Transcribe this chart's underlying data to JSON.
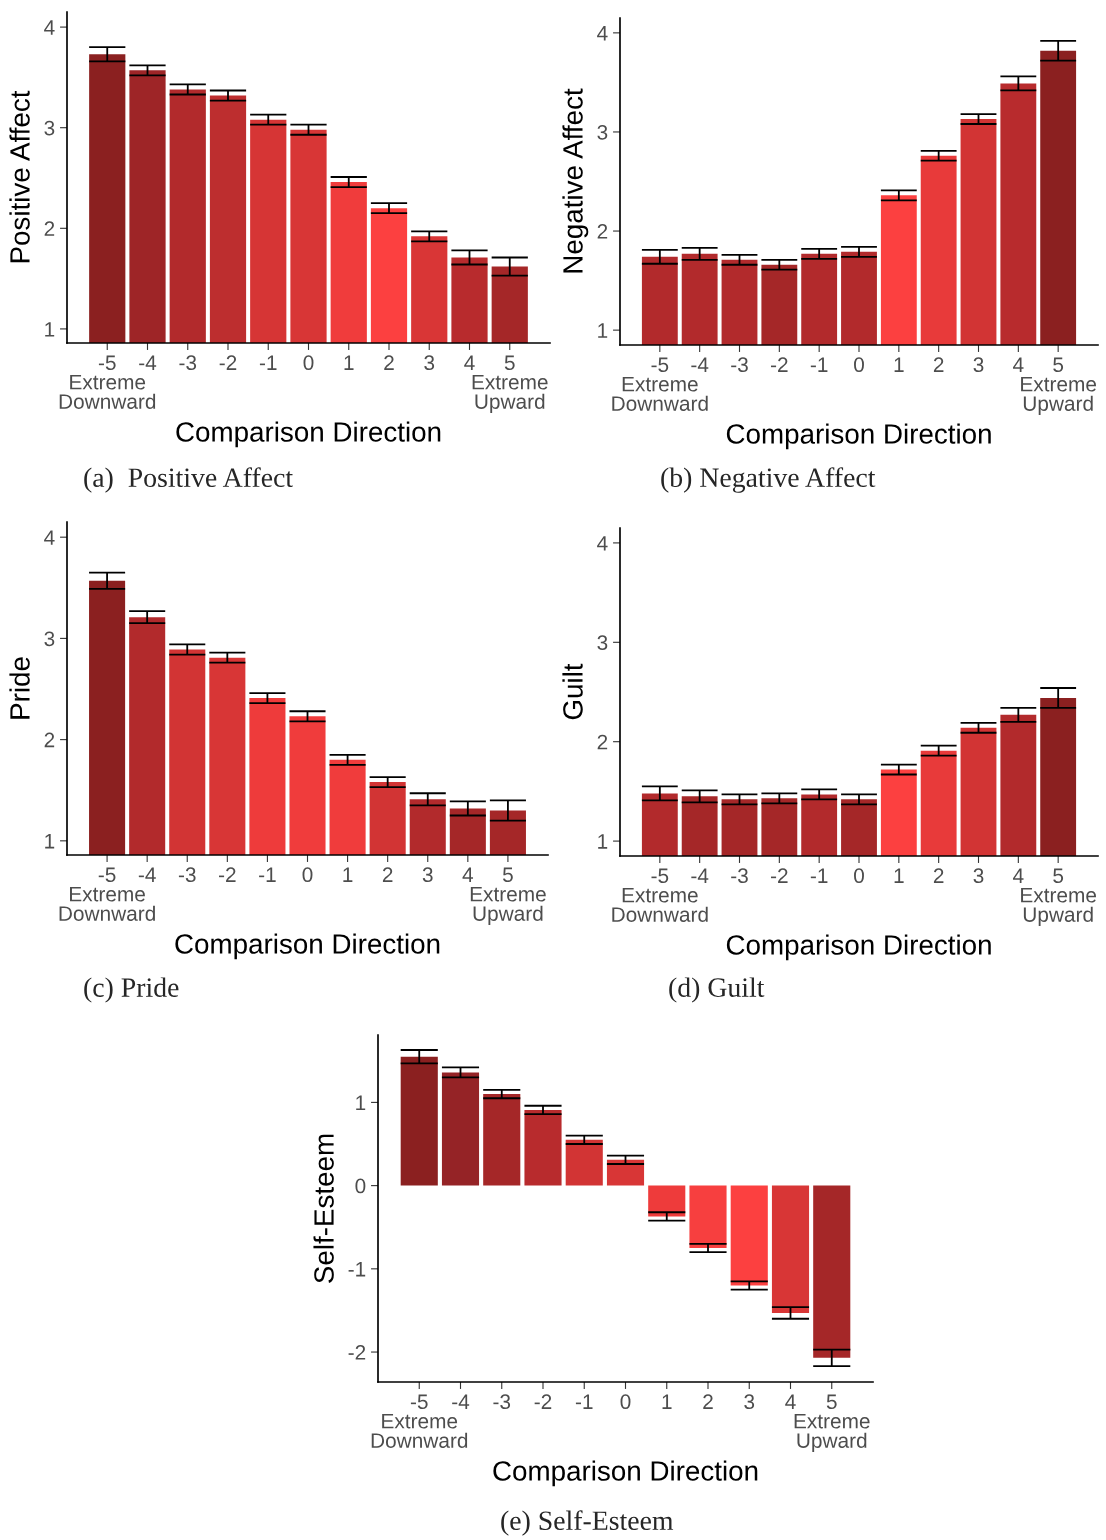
{
  "chart_data": [
    {
      "type": "bar",
      "xlabel": "Comparison Direction",
      "ylabel": "Positive Affect",
      "annotations": [
        "(a)  Positive Affect"
      ],
      "categories": [
        "-5\nExtreme\nDownward",
        "-4",
        "-3",
        "-2",
        "-1",
        "0",
        "1",
        "2",
        "3",
        "4",
        "5\nExtreme\nUpward"
      ],
      "values": [
        3.73,
        3.57,
        3.38,
        3.32,
        3.08,
        2.98,
        2.46,
        2.2,
        1.92,
        1.71,
        1.62
      ],
      "errors": [
        0.07,
        0.05,
        0.05,
        0.05,
        0.05,
        0.05,
        0.05,
        0.05,
        0.05,
        0.07,
        0.09
      ],
      "colors": [
        "#8b2020",
        "#9e2527",
        "#b22a2c",
        "#bd2e2f",
        "#d63535",
        "#d83636",
        "#f03c3c",
        "#fc4040",
        "#d93636",
        "#b82b2d",
        "#a52728"
      ],
      "ylim": [
        0.86,
        4.15
      ],
      "yticks": [
        1,
        2,
        3,
        4
      ],
      "grid": false
    },
    {
      "type": "bar",
      "xlabel": "Comparison Direction",
      "ylabel": "Negative Affect",
      "annotations": [
        "(b) Negative Affect"
      ],
      "categories": [
        "-5\nExtreme\nDownward",
        "-4",
        "-3",
        "-2",
        "-1",
        "0",
        "1",
        "2",
        "3",
        "4",
        "5\nExtreme\nUpward"
      ],
      "values": [
        1.74,
        1.77,
        1.71,
        1.66,
        1.77,
        1.79,
        2.36,
        2.76,
        3.13,
        3.49,
        3.82
      ],
      "errors": [
        0.07,
        0.06,
        0.05,
        0.05,
        0.05,
        0.05,
        0.05,
        0.05,
        0.05,
        0.07,
        0.1
      ],
      "colors": [
        "#b22a2c",
        "#b22a2c",
        "#b22a2c",
        "#a52728",
        "#b22a2c",
        "#b22a2c",
        "#fc4040",
        "#e83a3a",
        "#d23434",
        "#b82b2d",
        "#8b2020"
      ],
      "ylim": [
        0.85,
        4.15
      ],
      "yticks": [
        1,
        2,
        3,
        4
      ],
      "grid": false
    },
    {
      "type": "bar",
      "xlabel": "Comparison Direction",
      "ylabel": "Pride",
      "annotations": [
        "(c) Pride"
      ],
      "categories": [
        "-5\nExtreme\nDownward",
        "-4",
        "-3",
        "-2",
        "-1",
        "0",
        "1",
        "2",
        "3",
        "4",
        "5\nExtreme\nUpward"
      ],
      "values": [
        3.57,
        3.21,
        2.89,
        2.81,
        2.41,
        2.23,
        1.8,
        1.58,
        1.41,
        1.32,
        1.3
      ],
      "errors": [
        0.08,
        0.06,
        0.05,
        0.05,
        0.05,
        0.05,
        0.05,
        0.05,
        0.06,
        0.07,
        0.1
      ],
      "colors": [
        "#8b2020",
        "#b22a2c",
        "#d23434",
        "#d83636",
        "#ee3b3b",
        "#f03c3c",
        "#f03c3c",
        "#d23434",
        "#b22a2c",
        "#a52728",
        "#a52728"
      ],
      "ylim": [
        0.86,
        4.15
      ],
      "yticks": [
        1,
        2,
        3,
        4
      ],
      "grid": false
    },
    {
      "type": "bar",
      "xlabel": "Comparison Direction",
      "ylabel": "Guilt",
      "annotations": [
        "(d) Guilt"
      ],
      "categories": [
        "-5\nExtreme\nDownward",
        "-4",
        "-3",
        "-2",
        "-1",
        "0",
        "1",
        "2",
        "3",
        "4",
        "5\nExtreme\nUpward"
      ],
      "values": [
        1.48,
        1.45,
        1.42,
        1.43,
        1.47,
        1.42,
        1.72,
        1.91,
        2.14,
        2.27,
        2.44
      ],
      "errors": [
        0.07,
        0.06,
        0.05,
        0.05,
        0.05,
        0.05,
        0.05,
        0.05,
        0.05,
        0.07,
        0.1
      ],
      "colors": [
        "#b22a2c",
        "#a52728",
        "#a52728",
        "#a52728",
        "#b22a2c",
        "#a52728",
        "#fc4040",
        "#e83a3a",
        "#d23434",
        "#b22a2c",
        "#8b2020"
      ],
      "ylim": [
        0.85,
        4.15
      ],
      "yticks": [
        1,
        2,
        3,
        4
      ],
      "grid": false
    },
    {
      "type": "bar",
      "xlabel": "Comparison Direction",
      "ylabel": "Self-Esteem",
      "annotations": [
        "(e) Self-Esteem"
      ],
      "categories": [
        "-5\nExtreme\nDownward",
        "-4",
        "-3",
        "-2",
        "-1",
        "0",
        "1",
        "2",
        "3",
        "4",
        "5\nExtreme\nUpward"
      ],
      "values": [
        1.55,
        1.36,
        1.1,
        0.91,
        0.55,
        0.31,
        -0.37,
        -0.75,
        -1.2,
        -1.53,
        -2.07
      ],
      "errors": [
        0.08,
        0.06,
        0.05,
        0.05,
        0.05,
        0.05,
        0.05,
        0.05,
        0.05,
        0.07,
        0.1
      ],
      "colors": [
        "#8b2020",
        "#952326",
        "#a52728",
        "#b82b2d",
        "#d23434",
        "#d83636",
        "#ee3b3b",
        "#f73f3f",
        "#fc4040",
        "#d83636",
        "#a52728"
      ],
      "ylim": [
        -2.36,
        1.81
      ],
      "yticks": [
        -2,
        -1,
        0,
        1
      ],
      "grid": false
    }
  ]
}
